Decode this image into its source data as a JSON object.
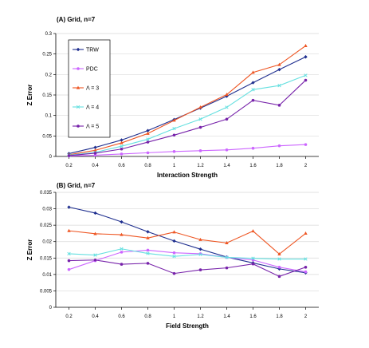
{
  "chart_data": [
    {
      "type": "line",
      "title": "(A) Grid, n=7",
      "xlabel": "Interaction Strength",
      "ylabel": "Z Error",
      "x": [
        0.2,
        0.4,
        0.6,
        0.8,
        1,
        1.2,
        1.4,
        1.6,
        1.8,
        2
      ],
      "x_tick_labels": [
        "0.2",
        "0.4",
        "0.6",
        "0.8",
        "1",
        "1.2",
        "1.4",
        "1.6",
        "1.8",
        "2"
      ],
      "ylim": [
        0,
        0.3
      ],
      "y_ticks": [
        0,
        0.05,
        0.1,
        0.15,
        0.2,
        0.25,
        0.3
      ],
      "y_tick_labels": [
        "0",
        "0.05",
        "0.1",
        "0.15",
        "0.2",
        "0.25",
        "0.3"
      ],
      "grid": "horizontal",
      "legend": "left, boxed",
      "series": [
        {
          "name": "TRW",
          "color": "#1f2f8f",
          "marker": "diamond",
          "values": [
            0.007,
            0.022,
            0.04,
            0.063,
            0.09,
            0.118,
            0.147,
            0.18,
            0.212,
            0.243
          ]
        },
        {
          "name": "PDC",
          "color": "#cc66ff",
          "marker": "dot",
          "values": [
            0.001,
            0.003,
            0.006,
            0.009,
            0.012,
            0.014,
            0.016,
            0.02,
            0.026,
            0.029
          ]
        },
        {
          "name": "Λ = 3",
          "color": "#ee5522",
          "marker": "triangle",
          "values": [
            0.004,
            0.015,
            0.033,
            0.056,
            0.088,
            0.12,
            0.151,
            0.205,
            0.224,
            0.27
          ]
        },
        {
          "name": "Λ = 4",
          "color": "#66e0e0",
          "marker": "x",
          "values": [
            0.003,
            0.01,
            0.025,
            0.042,
            0.068,
            0.091,
            0.12,
            0.163,
            0.173,
            0.198
          ]
        },
        {
          "name": "Λ = 5",
          "color": "#7722aa",
          "marker": "dot",
          "values": [
            0.002,
            0.008,
            0.018,
            0.035,
            0.052,
            0.071,
            0.091,
            0.137,
            0.125,
            0.186
          ]
        }
      ]
    },
    {
      "type": "line",
      "title": "(B) Grid, n=7",
      "xlabel": "Field Strength",
      "ylabel": "Z Error",
      "x": [
        0.2,
        0.4,
        0.6,
        0.8,
        1,
        1.2,
        1.4,
        1.6,
        1.8,
        2
      ],
      "x_tick_labels": [
        "0.2",
        "0.4",
        "0.6",
        "0.8",
        "1",
        "1.2",
        "1.4",
        "1.6",
        "1.8",
        "2"
      ],
      "ylim": [
        0,
        0.035
      ],
      "y_ticks": [
        0,
        0.005,
        0.01,
        0.015,
        0.02,
        0.025,
        0.03,
        0.035
      ],
      "y_tick_labels": [
        "0",
        "0.005",
        "0.01",
        "0.015",
        "0.02",
        "0.025",
        "0.03",
        "0.035"
      ],
      "grid": "horizontal",
      "series": [
        {
          "name": "TRW",
          "color": "#1f2f8f",
          "marker": "diamond",
          "values": [
            0.0305,
            0.0287,
            0.026,
            0.023,
            0.0202,
            0.0177,
            0.0153,
            0.0135,
            0.0117,
            0.0105
          ]
        },
        {
          "name": "PDC",
          "color": "#cc66ff",
          "marker": "dot",
          "values": [
            0.0115,
            0.0142,
            0.0168,
            0.0174,
            0.0166,
            0.0163,
            0.0152,
            0.0144,
            0.0122,
            0.0108
          ]
        },
        {
          "name": "Λ = 3",
          "color": "#ee5522",
          "marker": "triangle",
          "values": [
            0.0233,
            0.0224,
            0.0221,
            0.0211,
            0.0229,
            0.0206,
            0.0196,
            0.0232,
            0.0162,
            0.0225
          ]
        },
        {
          "name": "Λ = 4",
          "color": "#66e0e0",
          "marker": "x",
          "values": [
            0.0163,
            0.0159,
            0.0178,
            0.0164,
            0.0155,
            0.0161,
            0.0152,
            0.0149,
            0.0147,
            0.0147
          ]
        },
        {
          "name": "Λ = 5",
          "color": "#7722aa",
          "marker": "dot",
          "values": [
            0.0142,
            0.0144,
            0.0131,
            0.0134,
            0.0103,
            0.0114,
            0.012,
            0.0132,
            0.0094,
            0.0122
          ]
        }
      ]
    }
  ]
}
